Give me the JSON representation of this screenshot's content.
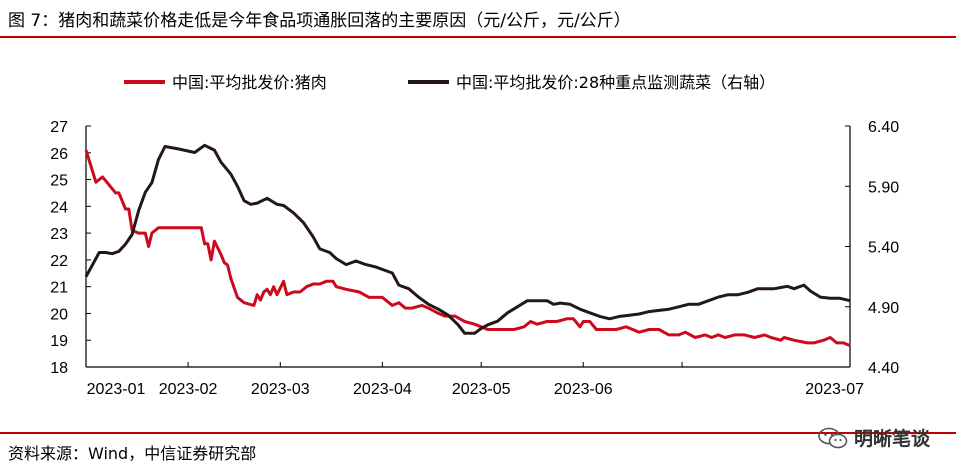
{
  "title": "图 7：猪肉和蔬菜价格走低是今年食品项通胀回落的主要原因（元/公斤，元/公斤）",
  "source": "资料来源：Wind，中信证券研究部",
  "watermark": "明晰笔谈",
  "colors": {
    "accent": "#c00000",
    "pork": "#cc0a1e",
    "veg": "#231815"
  },
  "chart_data": {
    "type": "line",
    "xlabel": "",
    "ylabel": "",
    "x_ticks": [
      "2023-01",
      "2023-02",
      "2023-03",
      "2023-04",
      "2023-05",
      "2023-06",
      "2023-07"
    ],
    "y_left": {
      "min": 18,
      "max": 27,
      "ticks": [
        "18",
        "19",
        "20",
        "21",
        "22",
        "23",
        "24",
        "25",
        "26",
        "27"
      ]
    },
    "y_right": {
      "min": 4.4,
      "max": 6.4,
      "ticks": [
        "4.40",
        "4.90",
        "5.40",
        "5.90",
        "6.40"
      ]
    },
    "legend_position": "top",
    "grid": false,
    "series": [
      {
        "name": "中国:平均批发价:猪肉",
        "axis": "left",
        "points": [
          [
            "2023-01-01",
            26.1
          ],
          [
            "2023-01-03",
            25.3
          ],
          [
            "2023-01-04",
            24.9
          ],
          [
            "2023-01-06",
            25.1
          ],
          [
            "2023-01-08",
            24.8
          ],
          [
            "2023-01-10",
            24.5
          ],
          [
            "2023-01-11",
            24.5
          ],
          [
            "2023-01-13",
            23.9
          ],
          [
            "2023-01-14",
            23.9
          ],
          [
            "2023-01-15",
            23.1
          ],
          [
            "2023-01-17",
            23.0
          ],
          [
            "2023-01-19",
            23.0
          ],
          [
            "2023-01-20",
            22.5
          ],
          [
            "2023-01-21",
            23.0
          ],
          [
            "2023-01-23",
            23.2
          ],
          [
            "2023-01-26",
            23.2
          ],
          [
            "2023-01-30",
            23.2
          ],
          [
            "2023-02-02",
            23.2
          ],
          [
            "2023-02-05",
            23.2
          ],
          [
            "2023-02-06",
            22.6
          ],
          [
            "2023-02-07",
            22.6
          ],
          [
            "2023-02-08",
            22.0
          ],
          [
            "2023-02-09",
            22.7
          ],
          [
            "2023-02-11",
            22.2
          ],
          [
            "2023-02-12",
            21.9
          ],
          [
            "2023-02-13",
            21.8
          ],
          [
            "2023-02-14",
            21.3
          ],
          [
            "2023-02-16",
            20.6
          ],
          [
            "2023-02-18",
            20.4
          ],
          [
            "2023-02-21",
            20.3
          ],
          [
            "2023-02-22",
            20.7
          ],
          [
            "2023-02-23",
            20.5
          ],
          [
            "2023-02-24",
            20.8
          ],
          [
            "2023-02-25",
            20.9
          ],
          [
            "2023-02-26",
            20.7
          ],
          [
            "2023-02-27",
            21.0
          ],
          [
            "2023-02-28",
            20.7
          ],
          [
            "2023-03-02",
            21.2
          ],
          [
            "2023-03-03",
            20.7
          ],
          [
            "2023-03-05",
            20.8
          ],
          [
            "2023-03-07",
            20.8
          ],
          [
            "2023-03-09",
            21.0
          ],
          [
            "2023-03-11",
            21.1
          ],
          [
            "2023-03-13",
            21.1
          ],
          [
            "2023-03-15",
            21.2
          ],
          [
            "2023-03-17",
            21.2
          ],
          [
            "2023-03-18",
            21.0
          ],
          [
            "2023-03-21",
            20.9
          ],
          [
            "2023-03-25",
            20.8
          ],
          [
            "2023-03-28",
            20.6
          ],
          [
            "2023-04-01",
            20.6
          ],
          [
            "2023-04-04",
            20.3
          ],
          [
            "2023-04-06",
            20.4
          ],
          [
            "2023-04-08",
            20.2
          ],
          [
            "2023-04-10",
            20.2
          ],
          [
            "2023-04-13",
            20.3
          ],
          [
            "2023-04-15",
            20.2
          ],
          [
            "2023-04-18",
            20.0
          ],
          [
            "2023-04-20",
            19.9
          ],
          [
            "2023-04-23",
            19.9
          ],
          [
            "2023-04-26",
            19.7
          ],
          [
            "2023-04-29",
            19.6
          ],
          [
            "2023-05-01",
            19.5
          ],
          [
            "2023-05-03",
            19.4
          ],
          [
            "2023-05-06",
            19.4
          ],
          [
            "2023-05-08",
            19.4
          ],
          [
            "2023-05-11",
            19.4
          ],
          [
            "2023-05-14",
            19.5
          ],
          [
            "2023-05-16",
            19.7
          ],
          [
            "2023-05-18",
            19.6
          ],
          [
            "2023-05-21",
            19.7
          ],
          [
            "2023-05-24",
            19.7
          ],
          [
            "2023-05-27",
            19.8
          ],
          [
            "2023-05-29",
            19.8
          ],
          [
            "2023-05-31",
            19.5
          ],
          [
            "2023-06-01",
            19.7
          ],
          [
            "2023-06-03",
            19.7
          ],
          [
            "2023-06-05",
            19.4
          ],
          [
            "2023-06-08",
            19.4
          ],
          [
            "2023-06-11",
            19.4
          ],
          [
            "2023-06-14",
            19.5
          ],
          [
            "2023-06-16",
            19.4
          ],
          [
            "2023-06-18",
            19.3
          ],
          [
            "2023-06-21",
            19.4
          ],
          [
            "2023-06-24",
            19.4
          ],
          [
            "2023-06-27",
            19.2
          ],
          [
            "2023-06-30",
            19.2
          ],
          [
            "2023-07-02",
            19.3
          ],
          [
            "2023-07-05",
            19.1
          ],
          [
            "2023-07-08",
            19.2
          ],
          [
            "2023-07-10",
            19.1
          ],
          [
            "2023-07-12",
            19.2
          ],
          [
            "2023-07-14",
            19.1
          ],
          [
            "2023-07-17",
            19.2
          ],
          [
            "2023-07-20",
            19.2
          ],
          [
            "2023-07-23",
            19.1
          ],
          [
            "2023-07-26",
            19.2
          ],
          [
            "2023-07-28",
            19.1
          ],
          [
            "2023-07-31",
            19.0
          ],
          [
            "2023-08-01",
            19.1
          ],
          [
            "2023-08-04",
            19.0
          ],
          [
            "2023-08-08",
            18.9
          ],
          [
            "2023-08-10",
            18.9
          ],
          [
            "2023-08-13",
            19.0
          ],
          [
            "2023-08-15",
            19.1
          ],
          [
            "2023-08-17",
            18.9
          ],
          [
            "2023-08-19",
            18.9
          ],
          [
            "2023-08-21",
            18.8
          ]
        ]
      },
      {
        "name": "中国:平均批发价:28种重点监测蔬菜（右轴）",
        "axis": "right",
        "points": [
          [
            "2023-01-01",
            5.15
          ],
          [
            "2023-01-03",
            5.25
          ],
          [
            "2023-01-05",
            5.35
          ],
          [
            "2023-01-07",
            5.35
          ],
          [
            "2023-01-09",
            5.34
          ],
          [
            "2023-01-11",
            5.36
          ],
          [
            "2023-01-13",
            5.42
          ],
          [
            "2023-01-15",
            5.5
          ],
          [
            "2023-01-17",
            5.7
          ],
          [
            "2023-01-19",
            5.85
          ],
          [
            "2023-01-21",
            5.93
          ],
          [
            "2023-01-23",
            6.12
          ],
          [
            "2023-01-25",
            6.23
          ],
          [
            "2023-01-29",
            6.21
          ],
          [
            "2023-02-03",
            6.18
          ],
          [
            "2023-02-06",
            6.24
          ],
          [
            "2023-02-09",
            6.2
          ],
          [
            "2023-02-11",
            6.1
          ],
          [
            "2023-02-14",
            6.0
          ],
          [
            "2023-02-16",
            5.9
          ],
          [
            "2023-02-18",
            5.78
          ],
          [
            "2023-02-20",
            5.75
          ],
          [
            "2023-02-22",
            5.76
          ],
          [
            "2023-02-25",
            5.8
          ],
          [
            "2023-02-28",
            5.75
          ],
          [
            "2023-03-02",
            5.74
          ],
          [
            "2023-03-05",
            5.68
          ],
          [
            "2023-03-08",
            5.6
          ],
          [
            "2023-03-11",
            5.48
          ],
          [
            "2023-03-13",
            5.38
          ],
          [
            "2023-03-16",
            5.35
          ],
          [
            "2023-03-18",
            5.3
          ],
          [
            "2023-03-21",
            5.25
          ],
          [
            "2023-03-24",
            5.28
          ],
          [
            "2023-03-27",
            5.25
          ],
          [
            "2023-03-30",
            5.23
          ],
          [
            "2023-04-02",
            5.2
          ],
          [
            "2023-04-04",
            5.18
          ],
          [
            "2023-04-06",
            5.08
          ],
          [
            "2023-04-09",
            5.05
          ],
          [
            "2023-04-12",
            4.98
          ],
          [
            "2023-04-15",
            4.92
          ],
          [
            "2023-04-18",
            4.88
          ],
          [
            "2023-04-21",
            4.83
          ],
          [
            "2023-04-24",
            4.75
          ],
          [
            "2023-04-26",
            4.68
          ],
          [
            "2023-04-29",
            4.68
          ],
          [
            "2023-05-01",
            4.72
          ],
          [
            "2023-05-03",
            4.75
          ],
          [
            "2023-05-06",
            4.78
          ],
          [
            "2023-05-09",
            4.85
          ],
          [
            "2023-05-12",
            4.9
          ],
          [
            "2023-05-15",
            4.95
          ],
          [
            "2023-05-18",
            4.95
          ],
          [
            "2023-05-21",
            4.95
          ],
          [
            "2023-05-23",
            4.92
          ],
          [
            "2023-05-25",
            4.93
          ],
          [
            "2023-05-28",
            4.92
          ],
          [
            "2023-05-31",
            4.88
          ],
          [
            "2023-06-03",
            4.85
          ],
          [
            "2023-06-06",
            4.82
          ],
          [
            "2023-06-09",
            4.8
          ],
          [
            "2023-06-12",
            4.82
          ],
          [
            "2023-06-15",
            4.83
          ],
          [
            "2023-06-18",
            4.84
          ],
          [
            "2023-06-21",
            4.86
          ],
          [
            "2023-06-24",
            4.87
          ],
          [
            "2023-06-27",
            4.88
          ],
          [
            "2023-06-30",
            4.9
          ],
          [
            "2023-07-03",
            4.92
          ],
          [
            "2023-07-06",
            4.92
          ],
          [
            "2023-07-09",
            4.95
          ],
          [
            "2023-07-12",
            4.98
          ],
          [
            "2023-07-15",
            5.0
          ],
          [
            "2023-07-18",
            5.0
          ],
          [
            "2023-07-21",
            5.02
          ],
          [
            "2023-07-24",
            5.05
          ],
          [
            "2023-07-27",
            5.05
          ],
          [
            "2023-07-29",
            5.05
          ],
          [
            "2023-07-31",
            5.06
          ],
          [
            "2023-08-02",
            5.07
          ],
          [
            "2023-08-04",
            5.05
          ],
          [
            "2023-08-07",
            5.08
          ],
          [
            "2023-08-09",
            5.03
          ],
          [
            "2023-08-12",
            4.98
          ],
          [
            "2023-08-15",
            4.97
          ],
          [
            "2023-08-18",
            4.97
          ],
          [
            "2023-08-21",
            4.95
          ]
        ]
      }
    ]
  }
}
